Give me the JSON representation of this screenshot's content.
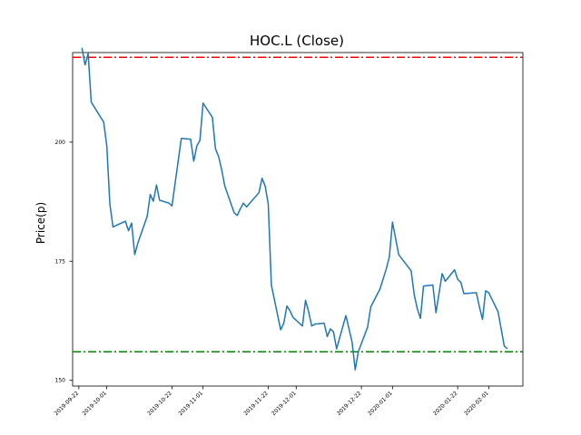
{
  "chart_data": {
    "type": "line",
    "title": "HOC.L (Close)",
    "xlabel": "",
    "ylabel": "Price(p)",
    "x_tick_labels": [
      "2019-09-22",
      "2019-10-01",
      "2019-10-22",
      "2019-11-01",
      "2019-11-22",
      "2019-12-01",
      "2019-12-22",
      "2020-01-01",
      "2020-01-22",
      "2020-02-01"
    ],
    "y_ticks": [
      150,
      175,
      200
    ],
    "ylim": [
      148.8,
      218.8
    ],
    "xlim": [
      "2019-09-20",
      "2020-02-12"
    ],
    "grid": false,
    "reference_lines": [
      {
        "value": 217.8,
        "color": "#ff0000",
        "style": "dash-dot"
      },
      {
        "value": 156.0,
        "color": "#008000",
        "style": "dash-dot"
      }
    ],
    "series": [
      {
        "color": "#1f77b4",
        "points": [
          [
            "2019-09-23",
            219.8
          ],
          [
            "2019-09-24",
            216.2
          ],
          [
            "2019-09-25",
            218.6
          ],
          [
            "2019-09-26",
            208.4
          ],
          [
            "2019-09-30",
            204.2
          ],
          [
            "2019-10-01",
            199.2
          ],
          [
            "2019-10-02",
            187.0
          ],
          [
            "2019-10-03",
            182.2
          ],
          [
            "2019-10-07",
            183.4
          ],
          [
            "2019-10-08",
            181.4
          ],
          [
            "2019-10-09",
            183.0
          ],
          [
            "2019-10-10",
            176.4
          ],
          [
            "2019-10-11",
            178.8
          ],
          [
            "2019-10-14",
            184.4
          ],
          [
            "2019-10-15",
            189.0
          ],
          [
            "2019-10-16",
            187.6
          ],
          [
            "2019-10-17",
            191.0
          ],
          [
            "2019-10-18",
            187.8
          ],
          [
            "2019-10-21",
            187.2
          ],
          [
            "2019-10-22",
            186.6
          ],
          [
            "2019-10-25",
            200.8
          ],
          [
            "2019-10-28",
            200.6
          ],
          [
            "2019-10-29",
            196.0
          ],
          [
            "2019-10-30",
            199.2
          ],
          [
            "2019-10-31",
            200.4
          ],
          [
            "2019-11-01",
            208.2
          ],
          [
            "2019-11-04",
            205.2
          ],
          [
            "2019-11-05",
            198.6
          ],
          [
            "2019-11-06",
            197.0
          ],
          [
            "2019-11-07",
            194.2
          ],
          [
            "2019-11-08",
            190.8
          ],
          [
            "2019-11-11",
            185.2
          ],
          [
            "2019-11-12",
            184.6
          ],
          [
            "2019-11-13",
            186.0
          ],
          [
            "2019-11-14",
            187.2
          ],
          [
            "2019-11-15",
            186.4
          ],
          [
            "2019-11-19",
            189.4
          ],
          [
            "2019-11-20",
            192.4
          ],
          [
            "2019-11-21",
            190.8
          ],
          [
            "2019-11-22",
            187.0
          ],
          [
            "2019-11-23",
            170.0
          ],
          [
            "2019-11-26",
            160.6
          ],
          [
            "2019-11-27",
            162.0
          ],
          [
            "2019-11-28",
            165.6
          ],
          [
            "2019-11-29",
            164.6
          ],
          [
            "2019-11-30",
            163.2
          ],
          [
            "2019-12-03",
            161.4
          ],
          [
            "2019-12-04",
            166.8
          ],
          [
            "2019-12-05",
            164.4
          ],
          [
            "2019-12-06",
            161.4
          ],
          [
            "2019-12-07",
            161.8
          ],
          [
            "2019-12-10",
            162.0
          ],
          [
            "2019-12-11",
            159.2
          ],
          [
            "2019-12-12",
            160.8
          ],
          [
            "2019-12-13",
            160.2
          ],
          [
            "2019-12-14",
            156.6
          ],
          [
            "2019-12-17",
            163.6
          ],
          [
            "2019-12-19",
            158.0
          ],
          [
            "2019-12-20",
            152.2
          ],
          [
            "2019-12-21",
            156.0
          ],
          [
            "2019-12-24",
            161.2
          ],
          [
            "2019-12-25",
            165.4
          ],
          [
            "2019-12-28",
            169.2
          ],
          [
            "2019-12-30",
            173.4
          ],
          [
            "2019-12-31",
            176.0
          ],
          [
            "2020-01-01",
            183.2
          ],
          [
            "2020-01-03",
            176.4
          ],
          [
            "2020-01-07",
            173.0
          ],
          [
            "2020-01-08",
            168.0
          ],
          [
            "2020-01-09",
            165.0
          ],
          [
            "2020-01-10",
            163.0
          ],
          [
            "2020-01-11",
            169.8
          ],
          [
            "2020-01-14",
            170.0
          ],
          [
            "2020-01-15",
            164.2
          ],
          [
            "2020-01-17",
            172.4
          ],
          [
            "2020-01-18",
            170.8
          ],
          [
            "2020-01-21",
            173.2
          ],
          [
            "2020-01-22",
            171.2
          ],
          [
            "2020-01-23",
            170.6
          ],
          [
            "2020-01-24",
            168.2
          ],
          [
            "2020-01-28",
            168.4
          ],
          [
            "2020-01-29",
            165.4
          ],
          [
            "2020-01-30",
            162.8
          ],
          [
            "2020-01-31",
            168.8
          ],
          [
            "2020-02-01",
            168.4
          ],
          [
            "2020-02-04",
            164.4
          ],
          [
            "2020-02-06",
            157.2
          ],
          [
            "2020-02-07",
            156.6
          ]
        ]
      }
    ]
  }
}
